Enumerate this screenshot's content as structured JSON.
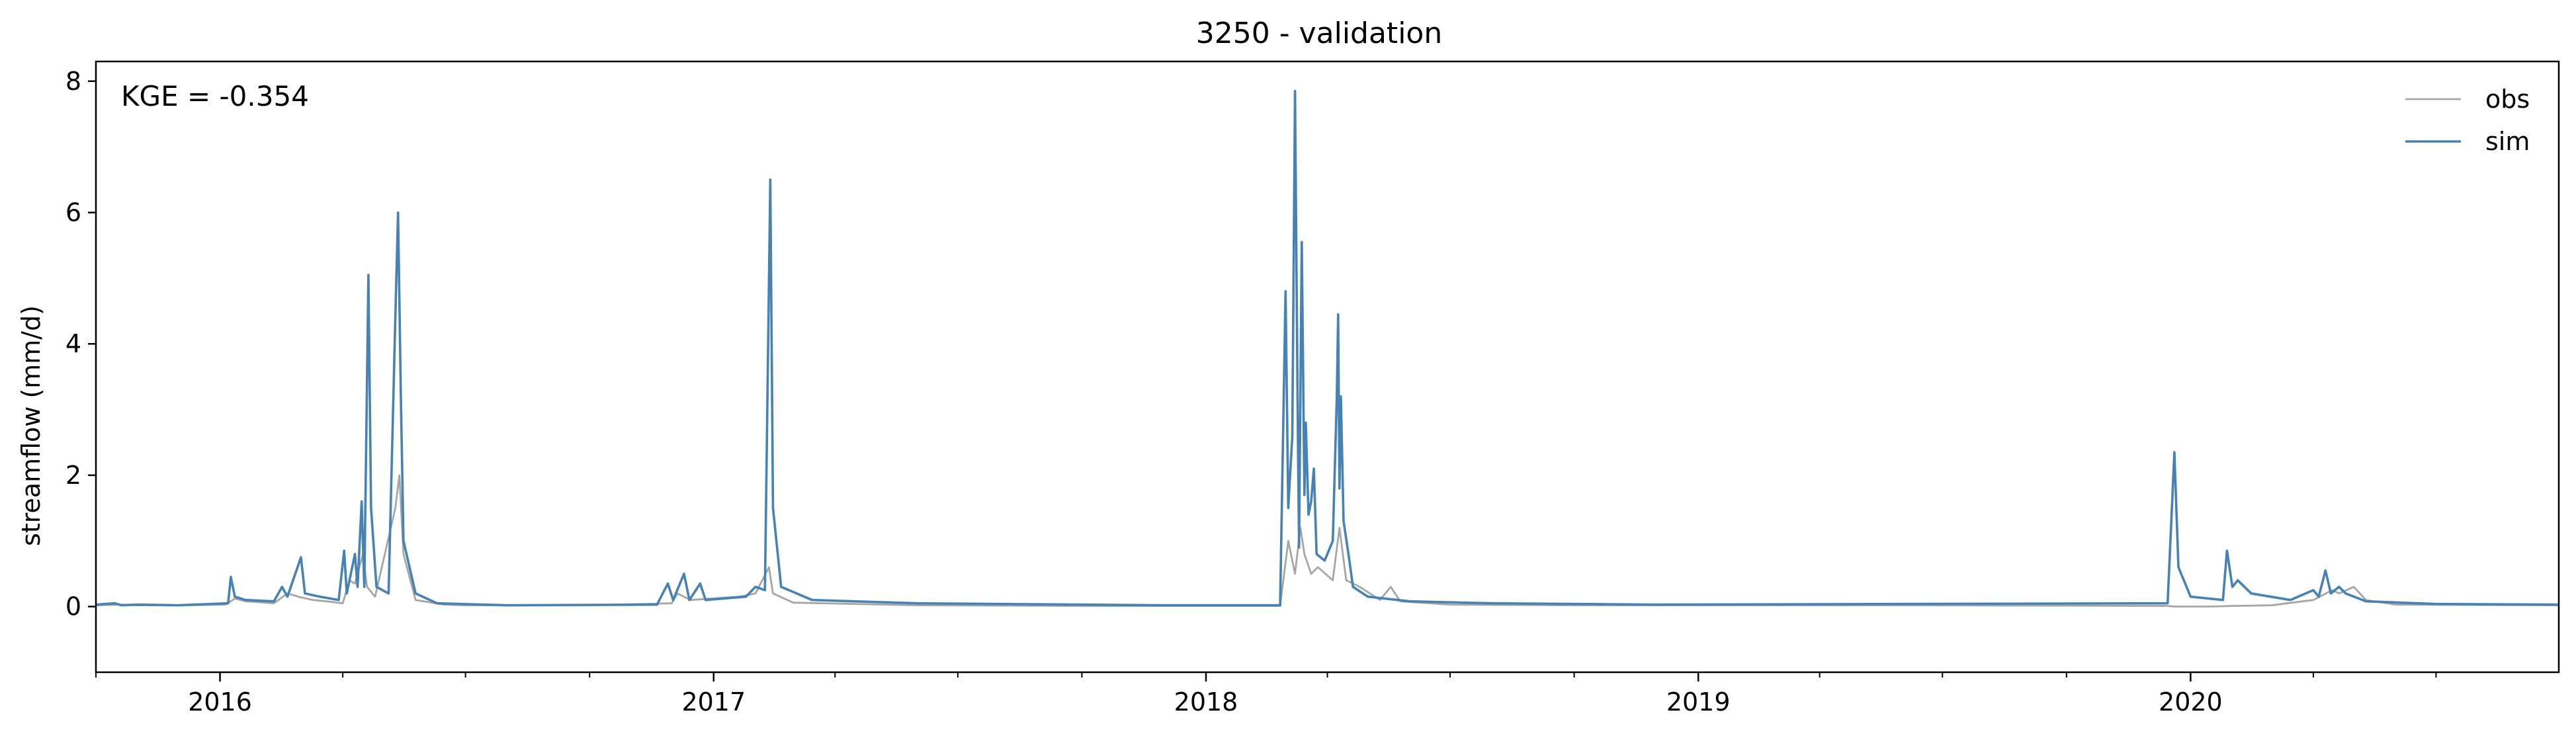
{
  "chart_data": {
    "type": "line",
    "title": "3250 - validation",
    "xlabel": "",
    "ylabel": "streamflow (mm/d)",
    "annotation": "KGE = -0.354",
    "xlim": [
      "2015-10-01",
      "2020-09-30"
    ],
    "ylim": [
      -1,
      8.3
    ],
    "yticks": [
      0,
      2,
      4,
      6,
      8
    ],
    "xticks": [
      {
        "date": "2016-01-01",
        "label": "2016"
      },
      {
        "date": "2017-01-01",
        "label": "2017"
      },
      {
        "date": "2018-01-01",
        "label": "2018"
      },
      {
        "date": "2019-01-01",
        "label": "2019"
      },
      {
        "date": "2020-01-01",
        "label": "2020"
      }
    ],
    "grid": false,
    "legend_position": "top-right",
    "series": [
      {
        "name": "obs",
        "color": "#a6a6a6",
        "points": [
          [
            "2015-10-01",
            0.02
          ],
          [
            "2015-10-20",
            0.03
          ],
          [
            "2015-11-01",
            0.02
          ],
          [
            "2015-12-01",
            0.02
          ],
          [
            "2016-01-05",
            0.03
          ],
          [
            "2016-01-12",
            0.12
          ],
          [
            "2016-01-20",
            0.08
          ],
          [
            "2016-02-10",
            0.05
          ],
          [
            "2016-02-20",
            0.2
          ],
          [
            "2016-02-28",
            0.15
          ],
          [
            "2016-03-10",
            0.1
          ],
          [
            "2016-03-20",
            0.08
          ],
          [
            "2016-04-01",
            0.05
          ],
          [
            "2016-04-06",
            0.4
          ],
          [
            "2016-04-10",
            0.35
          ],
          [
            "2016-04-16",
            0.8
          ],
          [
            "2016-04-19",
            0.3
          ],
          [
            "2016-04-25",
            0.15
          ],
          [
            "2016-05-10",
            1.5
          ],
          [
            "2016-05-13",
            2.0
          ],
          [
            "2016-05-16",
            0.8
          ],
          [
            "2016-05-25",
            0.1
          ],
          [
            "2016-06-15",
            0.03
          ],
          [
            "2016-07-01",
            0.02
          ],
          [
            "2016-10-01",
            0.02
          ],
          [
            "2016-12-01",
            0.05
          ],
          [
            "2016-12-05",
            0.2
          ],
          [
            "2016-12-15",
            0.1
          ],
          [
            "2017-01-20",
            0.15
          ],
          [
            "2017-02-01",
            0.2
          ],
          [
            "2017-02-11",
            0.6
          ],
          [
            "2017-02-14",
            0.2
          ],
          [
            "2017-03-01",
            0.06
          ],
          [
            "2017-06-01",
            0.02
          ],
          [
            "2017-10-01",
            0.01
          ],
          [
            "2018-02-25",
            0.01
          ],
          [
            "2018-03-03",
            1.0
          ],
          [
            "2018-03-08",
            0.5
          ],
          [
            "2018-03-12",
            1.2
          ],
          [
            "2018-03-15",
            0.8
          ],
          [
            "2018-03-20",
            0.5
          ],
          [
            "2018-03-25",
            0.6
          ],
          [
            "2018-04-05",
            0.4
          ],
          [
            "2018-04-10",
            1.2
          ],
          [
            "2018-04-15",
            0.4
          ],
          [
            "2018-04-25",
            0.3
          ],
          [
            "2018-05-10",
            0.1
          ],
          [
            "2018-05-18",
            0.3
          ],
          [
            "2018-05-25",
            0.08
          ],
          [
            "2018-07-01",
            0.03
          ],
          [
            "2018-10-01",
            0.02
          ],
          [
            "2019-06-01",
            0.02
          ],
          [
            "2019-12-15",
            0.01
          ],
          [
            "2019-12-20",
            0.0
          ],
          [
            "2020-01-15",
            0.0
          ],
          [
            "2020-02-01",
            0.01
          ],
          [
            "2020-03-01",
            0.02
          ],
          [
            "2020-04-01",
            0.1
          ],
          [
            "2020-04-15",
            0.25
          ],
          [
            "2020-04-20",
            0.2
          ],
          [
            "2020-05-01",
            0.3
          ],
          [
            "2020-05-10",
            0.1
          ],
          [
            "2020-06-01",
            0.03
          ],
          [
            "2020-09-30",
            0.02
          ]
        ]
      },
      {
        "name": "sim",
        "color": "#4682b4",
        "points": [
          [
            "2015-10-01",
            0.03
          ],
          [
            "2015-10-15",
            0.05
          ],
          [
            "2015-10-20",
            0.02
          ],
          [
            "2015-11-01",
            0.03
          ],
          [
            "2015-12-01",
            0.02
          ],
          [
            "2016-01-07",
            0.05
          ],
          [
            "2016-01-09",
            0.45
          ],
          [
            "2016-01-12",
            0.15
          ],
          [
            "2016-01-20",
            0.1
          ],
          [
            "2016-02-10",
            0.08
          ],
          [
            "2016-02-16",
            0.3
          ],
          [
            "2016-02-20",
            0.15
          ],
          [
            "2016-03-01",
            0.75
          ],
          [
            "2016-03-04",
            0.2
          ],
          [
            "2016-03-15",
            0.15
          ],
          [
            "2016-03-29",
            0.1
          ],
          [
            "2016-04-02",
            0.85
          ],
          [
            "2016-04-04",
            0.2
          ],
          [
            "2016-04-10",
            0.8
          ],
          [
            "2016-04-12",
            0.3
          ],
          [
            "2016-04-15",
            1.6
          ],
          [
            "2016-04-17",
            0.3
          ],
          [
            "2016-04-20",
            5.05
          ],
          [
            "2016-04-22",
            1.5
          ],
          [
            "2016-04-26",
            0.3
          ],
          [
            "2016-05-05",
            0.2
          ],
          [
            "2016-05-10",
            4.4
          ],
          [
            "2016-05-12",
            6.0
          ],
          [
            "2016-05-14",
            3.3
          ],
          [
            "2016-05-16",
            1.0
          ],
          [
            "2016-05-25",
            0.2
          ],
          [
            "2016-06-10",
            0.05
          ],
          [
            "2016-08-01",
            0.02
          ],
          [
            "2016-11-20",
            0.03
          ],
          [
            "2016-11-28",
            0.35
          ],
          [
            "2016-12-02",
            0.1
          ],
          [
            "2016-12-10",
            0.5
          ],
          [
            "2016-12-14",
            0.1
          ],
          [
            "2016-12-22",
            0.35
          ],
          [
            "2016-12-26",
            0.1
          ],
          [
            "2017-01-25",
            0.15
          ],
          [
            "2017-02-01",
            0.3
          ],
          [
            "2017-02-08",
            0.25
          ],
          [
            "2017-02-12",
            6.5
          ],
          [
            "2017-02-14",
            1.5
          ],
          [
            "2017-02-20",
            0.3
          ],
          [
            "2017-03-15",
            0.1
          ],
          [
            "2017-06-01",
            0.05
          ],
          [
            "2017-12-01",
            0.02
          ],
          [
            "2018-02-25",
            0.02
          ],
          [
            "2018-03-01",
            4.8
          ],
          [
            "2018-03-03",
            1.5
          ],
          [
            "2018-03-06",
            2.6
          ],
          [
            "2018-03-08",
            7.85
          ],
          [
            "2018-03-10",
            3.0
          ],
          [
            "2018-03-11",
            0.9
          ],
          [
            "2018-03-13",
            5.55
          ],
          [
            "2018-03-15",
            1.7
          ],
          [
            "2018-03-16",
            2.8
          ],
          [
            "2018-03-18",
            1.4
          ],
          [
            "2018-03-20",
            1.6
          ],
          [
            "2018-03-22",
            2.1
          ],
          [
            "2018-03-24",
            0.8
          ],
          [
            "2018-03-30",
            0.7
          ],
          [
            "2018-04-05",
            1.0
          ],
          [
            "2018-04-08",
            3.2
          ],
          [
            "2018-04-09",
            4.45
          ],
          [
            "2018-04-10",
            1.8
          ],
          [
            "2018-04-11",
            3.2
          ],
          [
            "2018-04-13",
            1.3
          ],
          [
            "2018-04-17",
            0.75
          ],
          [
            "2018-04-20",
            0.3
          ],
          [
            "2018-05-01",
            0.15
          ],
          [
            "2018-06-01",
            0.08
          ],
          [
            "2018-08-01",
            0.05
          ],
          [
            "2018-12-01",
            0.03
          ],
          [
            "2019-06-01",
            0.04
          ],
          [
            "2019-12-15",
            0.05
          ],
          [
            "2019-12-20",
            2.35
          ],
          [
            "2019-12-23",
            0.6
          ],
          [
            "2020-01-01",
            0.15
          ],
          [
            "2020-01-25",
            0.1
          ],
          [
            "2020-01-28",
            0.85
          ],
          [
            "2020-02-01",
            0.3
          ],
          [
            "2020-02-05",
            0.4
          ],
          [
            "2020-02-15",
            0.2
          ],
          [
            "2020-03-15",
            0.1
          ],
          [
            "2020-04-01",
            0.25
          ],
          [
            "2020-04-05",
            0.15
          ],
          [
            "2020-04-10",
            0.55
          ],
          [
            "2020-04-14",
            0.2
          ],
          [
            "2020-04-20",
            0.3
          ],
          [
            "2020-04-25",
            0.2
          ],
          [
            "2020-05-10",
            0.08
          ],
          [
            "2020-07-01",
            0.04
          ],
          [
            "2020-09-30",
            0.03
          ]
        ]
      }
    ]
  }
}
